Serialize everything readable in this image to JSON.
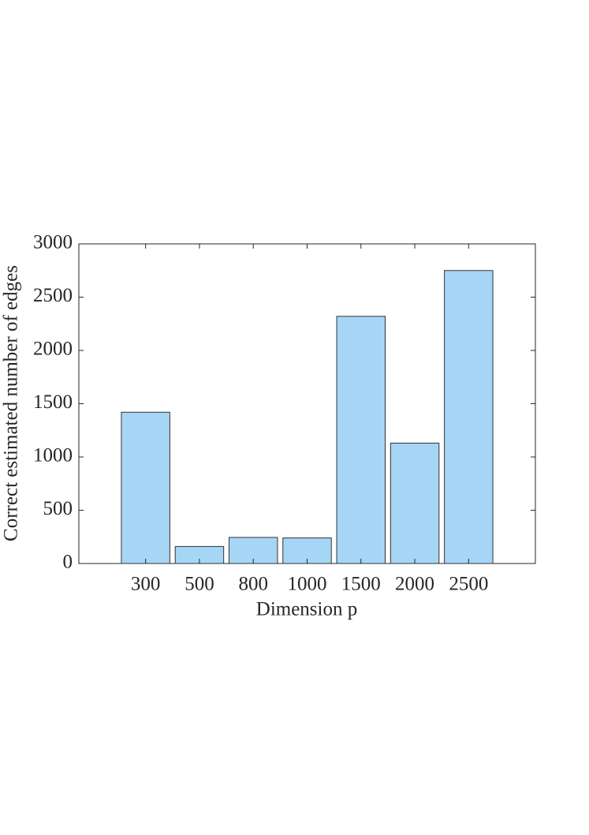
{
  "chart_data": {
    "type": "bar",
    "x_label": "Dimension p",
    "y_label": "Correct estimated number of edges",
    "categories": [
      "300",
      "500",
      "800",
      "1000",
      "1500",
      "2000",
      "2500"
    ],
    "values": [
      1420,
      160,
      245,
      240,
      2320,
      1130,
      2750
    ],
    "color": "#a6d6f6",
    "ylim": [
      0,
      3000
    ],
    "yticks": [
      0,
      500,
      1000,
      1500,
      2000,
      2500,
      3000
    ],
    "grid": false
  }
}
